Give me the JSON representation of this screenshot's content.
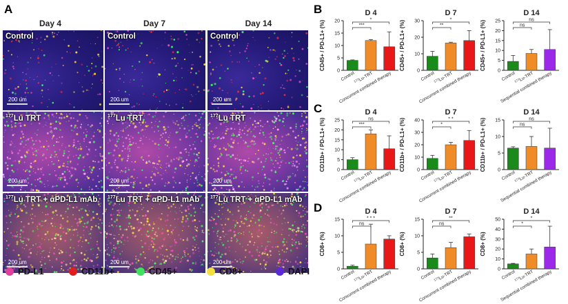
{
  "panel_a": {
    "letter": "A",
    "days": [
      "Day 4",
      "Day 7",
      "Day 14"
    ],
    "rows": [
      {
        "label_sup": "",
        "label": "Control"
      },
      {
        "label_sup": "177",
        "label": "Lu TRT"
      },
      {
        "label_sup": "177",
        "label": "Lu TRT + αPD-L1 mAb"
      }
    ],
    "scale_text": "200 um",
    "legend": [
      {
        "label": "PD-L1",
        "color": "#e0409a"
      },
      {
        "label": "CD11b+",
        "color": "#e02020"
      },
      {
        "label": "CD45+",
        "color": "#40e060"
      },
      {
        "label": "CD8+",
        "color": "#f0e040"
      },
      {
        "label": "DAPI",
        "color": "#5a2ad8"
      }
    ]
  },
  "panel_letters": [
    "B",
    "C",
    "D"
  ],
  "colors": {
    "control": "#1a8a1a",
    "trt": "#f08c28",
    "combo": "#e81818",
    "sequential": "#9a2ae8"
  },
  "chart_data": [
    {
      "type": "bar",
      "panel": "B",
      "title": "D 4",
      "ylabel": "CD45+ / PD-L1+ (%)",
      "ylim": [
        0,
        20
      ],
      "ticks": [
        0,
        5,
        10,
        15,
        20
      ],
      "categories": [
        "Control",
        "177Lu-TRT",
        "Concurrent combined therapy"
      ],
      "values": [
        4,
        12,
        9.5
      ],
      "errors": [
        0.2,
        0.4,
        6
      ],
      "brackets": [
        {
          "from": 0,
          "to": 1,
          "label": "***"
        },
        {
          "from": 0,
          "to": 2,
          "label": "*"
        }
      ]
    },
    {
      "type": "bar",
      "panel": "B",
      "title": "D 7",
      "ylabel": "CD45+ / PD-L1+ (%)",
      "ylim": [
        0,
        30
      ],
      "ticks": [
        0,
        10,
        20,
        30
      ],
      "categories": [
        "Control",
        "177Lu-TRT",
        "Concurrent combined therapy"
      ],
      "values": [
        8.5,
        16.5,
        18
      ],
      "errors": [
        3,
        0.5,
        6
      ],
      "brackets": [
        {
          "from": 0,
          "to": 1,
          "label": "**"
        },
        {
          "from": 0,
          "to": 2,
          "label": "*"
        }
      ]
    },
    {
      "type": "bar",
      "panel": "B",
      "title": "D 14",
      "ylabel": "CD45+ / PD-L1+ (%)",
      "ylim": [
        0,
        25
      ],
      "ticks": [
        0,
        5,
        10,
        15,
        20,
        25
      ],
      "categories": [
        "Control",
        "177Lu-TRT",
        "Sequential combined therapy"
      ],
      "values": [
        4.5,
        8.5,
        10.5
      ],
      "errors": [
        3,
        2,
        10
      ],
      "brackets": [
        {
          "from": 0,
          "to": 1,
          "label": "ns"
        },
        {
          "from": 0,
          "to": 2,
          "label": "ns"
        }
      ]
    },
    {
      "type": "bar",
      "panel": "C",
      "title": "D 4",
      "ylabel": "CD11b+ / PD-L1+ (%)",
      "ylim": [
        0,
        25
      ],
      "ticks": [
        0,
        5,
        10,
        15,
        20,
        25
      ],
      "categories": [
        "Control",
        "177Lu-TRT",
        "Concurrent combined therapy"
      ],
      "values": [
        5,
        18,
        10.5
      ],
      "errors": [
        1,
        2,
        6.5
      ],
      "brackets": [
        {
          "from": 0,
          "to": 1,
          "label": "***"
        },
        {
          "from": 0,
          "to": 2,
          "label": "ns"
        }
      ]
    },
    {
      "type": "bar",
      "panel": "C",
      "title": "D 7",
      "ylabel": "CD11b+ / PD-L1+ (%)",
      "ylim": [
        0,
        40
      ],
      "ticks": [
        0,
        10,
        20,
        30,
        40
      ],
      "categories": [
        "Control",
        "177Lu-TRT",
        "Concurrent combined therapy"
      ],
      "values": [
        9,
        20,
        23.5
      ],
      "errors": [
        2.5,
        2,
        8
      ],
      "brackets": [
        {
          "from": 0,
          "to": 1,
          "label": "*"
        },
        {
          "from": 0,
          "to": 2,
          "label": "* *"
        }
      ]
    },
    {
      "type": "bar",
      "panel": "C",
      "title": "D 14",
      "ylabel": "CD11b+ / PD-L1+ (%)",
      "ylim": [
        0,
        15
      ],
      "ticks": [
        0,
        5,
        10,
        15
      ],
      "categories": [
        "Control",
        "177Lu-TRT",
        "Sequential combined therapy"
      ],
      "values": [
        6.5,
        7,
        6.5
      ],
      "errors": [
        0.4,
        3,
        6
      ],
      "brackets": [
        {
          "from": 0,
          "to": 1,
          "label": "ns"
        },
        {
          "from": 0,
          "to": 2,
          "label": "ns"
        }
      ]
    },
    {
      "type": "bar",
      "panel": "D",
      "title": "D 4",
      "ylabel": "CD8+ (%)",
      "ylim": [
        0,
        15
      ],
      "ticks": [
        0,
        5,
        10,
        15
      ],
      "categories": [
        "Control",
        "177Lu-TRT",
        "Concurrent combined therapy"
      ],
      "values": [
        0.8,
        7.5,
        9
      ],
      "errors": [
        0.3,
        6,
        1
      ],
      "brackets": [
        {
          "from": 0,
          "to": 1,
          "label": "ns"
        },
        {
          "from": 0,
          "to": 2,
          "label": "* * *"
        }
      ]
    },
    {
      "type": "bar",
      "panel": "D",
      "title": "D 7",
      "ylabel": "CD8+ (%)",
      "ylim": [
        0,
        15
      ],
      "ticks": [
        0,
        5,
        10,
        15
      ],
      "categories": [
        "Control",
        "177Lu-TRT",
        "Concurrent combined therapy"
      ],
      "values": [
        3.3,
        6.4,
        9.7
      ],
      "errors": [
        1.2,
        1.6,
        0.8
      ],
      "brackets": [
        {
          "from": 0,
          "to": 1,
          "label": "ns"
        },
        {
          "from": 0,
          "to": 2,
          "label": "**"
        }
      ]
    },
    {
      "type": "bar",
      "panel": "D",
      "title": "D 14",
      "ylabel": "CD8+ (%)",
      "ylim": [
        0,
        50
      ],
      "ticks": [
        0,
        10,
        20,
        30,
        40,
        50
      ],
      "categories": [
        "Control",
        "177Lu-TRT",
        "Sequential combined therapy"
      ],
      "values": [
        5,
        15,
        22
      ],
      "errors": [
        0.5,
        5,
        21
      ],
      "brackets": [
        {
          "from": 0,
          "to": 1,
          "label": "*"
        },
        {
          "from": 0,
          "to": 2,
          "label": "*"
        }
      ]
    }
  ]
}
